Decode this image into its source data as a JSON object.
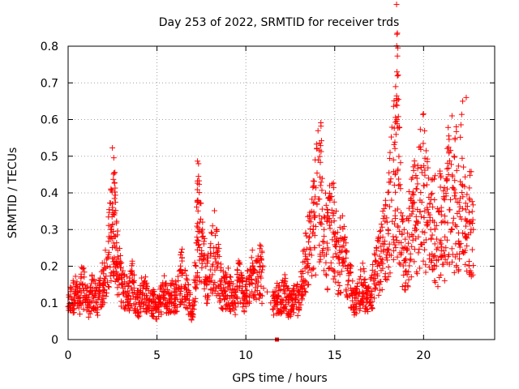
{
  "chart_data": {
    "type": "scatter",
    "title": "Day 253 of 2022, SRMTID for receiver trds",
    "xlabel": "GPS time / hours",
    "ylabel": "SRMTID / TECUs",
    "xlim": [
      0,
      24
    ],
    "ylim": [
      0,
      0.8
    ],
    "xticks": [
      0,
      5,
      10,
      15,
      20
    ],
    "xtick_labels": [
      "0",
      "5",
      "10",
      "15",
      "20"
    ],
    "yticks": [
      0,
      0.1,
      0.2,
      0.3,
      0.4,
      0.5,
      0.6,
      0.7,
      0.8
    ],
    "ytick_labels": [
      "0",
      "0.1",
      "0.2",
      "0.3",
      "0.4",
      "0.5",
      "0.6",
      "0.7",
      "0.8"
    ],
    "grid": true,
    "marker": "plus",
    "color": "#ff0000",
    "series": [
      {
        "name": "SRMTID",
        "x": [
          0.0,
          0.2,
          0.4,
          0.6,
          0.8,
          1.0,
          1.2,
          1.4,
          1.6,
          1.8,
          2.0,
          2.2,
          2.4,
          2.5,
          2.6,
          2.7,
          2.8,
          3.0,
          3.2,
          3.4,
          3.6,
          3.8,
          4.0,
          4.2,
          4.4,
          4.6,
          4.8,
          5.0,
          5.2,
          5.4,
          5.6,
          5.8,
          6.0,
          6.2,
          6.4,
          6.6,
          6.8,
          7.0,
          7.2,
          7.3,
          7.4,
          7.6,
          7.8,
          8.0,
          8.2,
          8.4,
          8.6,
          8.8,
          9.0,
          9.2,
          9.4,
          9.6,
          9.8,
          10.0,
          10.2,
          10.4,
          10.6,
          10.8,
          11.0,
          11.2,
          11.4,
          11.6,
          11.8,
          12.0,
          12.2,
          12.4,
          12.6,
          12.8,
          13.0,
          13.2,
          13.4,
          13.6,
          13.8,
          14.0,
          14.2,
          14.4,
          14.6,
          14.8,
          15.0,
          15.2,
          15.4,
          15.6,
          15.8,
          16.0,
          16.2,
          16.4,
          16.6,
          16.8,
          17.0,
          17.2,
          17.4,
          17.6,
          17.8,
          18.0,
          18.2,
          18.4,
          18.5,
          18.6,
          18.8,
          19.0,
          19.2,
          19.4,
          19.6,
          19.8,
          20.0,
          20.2,
          20.4,
          20.6,
          20.8,
          21.0,
          21.2,
          21.4,
          21.6,
          21.8,
          22.0,
          22.2,
          22.4,
          22.6,
          22.8
        ],
        "y": [
          0.09,
          0.11,
          0.13,
          0.1,
          0.15,
          0.12,
          0.09,
          0.14,
          0.1,
          0.13,
          0.16,
          0.2,
          0.3,
          0.36,
          0.34,
          0.25,
          0.2,
          0.15,
          0.13,
          0.12,
          0.16,
          0.11,
          0.1,
          0.14,
          0.12,
          0.09,
          0.1,
          0.08,
          0.11,
          0.13,
          0.1,
          0.12,
          0.11,
          0.14,
          0.18,
          0.15,
          0.1,
          0.07,
          0.2,
          0.38,
          0.3,
          0.22,
          0.17,
          0.19,
          0.25,
          0.2,
          0.15,
          0.13,
          0.14,
          0.12,
          0.1,
          0.17,
          0.13,
          0.12,
          0.15,
          0.18,
          0.16,
          0.2,
          0.14,
          0.13,
          0.1,
          0.09,
          0.12,
          0.11,
          0.13,
          0.1,
          0.09,
          0.12,
          0.1,
          0.18,
          0.22,
          0.25,
          0.3,
          0.37,
          0.42,
          0.3,
          0.25,
          0.32,
          0.28,
          0.22,
          0.24,
          0.2,
          0.18,
          0.12,
          0.1,
          0.13,
          0.15,
          0.1,
          0.12,
          0.16,
          0.2,
          0.22,
          0.26,
          0.3,
          0.38,
          0.45,
          0.6,
          0.42,
          0.25,
          0.22,
          0.28,
          0.35,
          0.3,
          0.38,
          0.42,
          0.36,
          0.3,
          0.32,
          0.25,
          0.35,
          0.28,
          0.45,
          0.3,
          0.4,
          0.35,
          0.42,
          0.28,
          0.32,
          0.3
        ]
      }
    ],
    "extra_peaks": [
      {
        "x": 18.5,
        "y": 0.73
      },
      {
        "x": 18.45,
        "y": 0.64
      },
      {
        "x": 22.4,
        "y": 0.66
      },
      {
        "x": 22.2,
        "y": 0.65
      },
      {
        "x": 21.6,
        "y": 0.61
      },
      {
        "x": 14.0,
        "y": 0.52
      },
      {
        "x": 13.9,
        "y": 0.49
      }
    ],
    "gap_marker": {
      "x": 11.75,
      "y": 0.0
    }
  }
}
